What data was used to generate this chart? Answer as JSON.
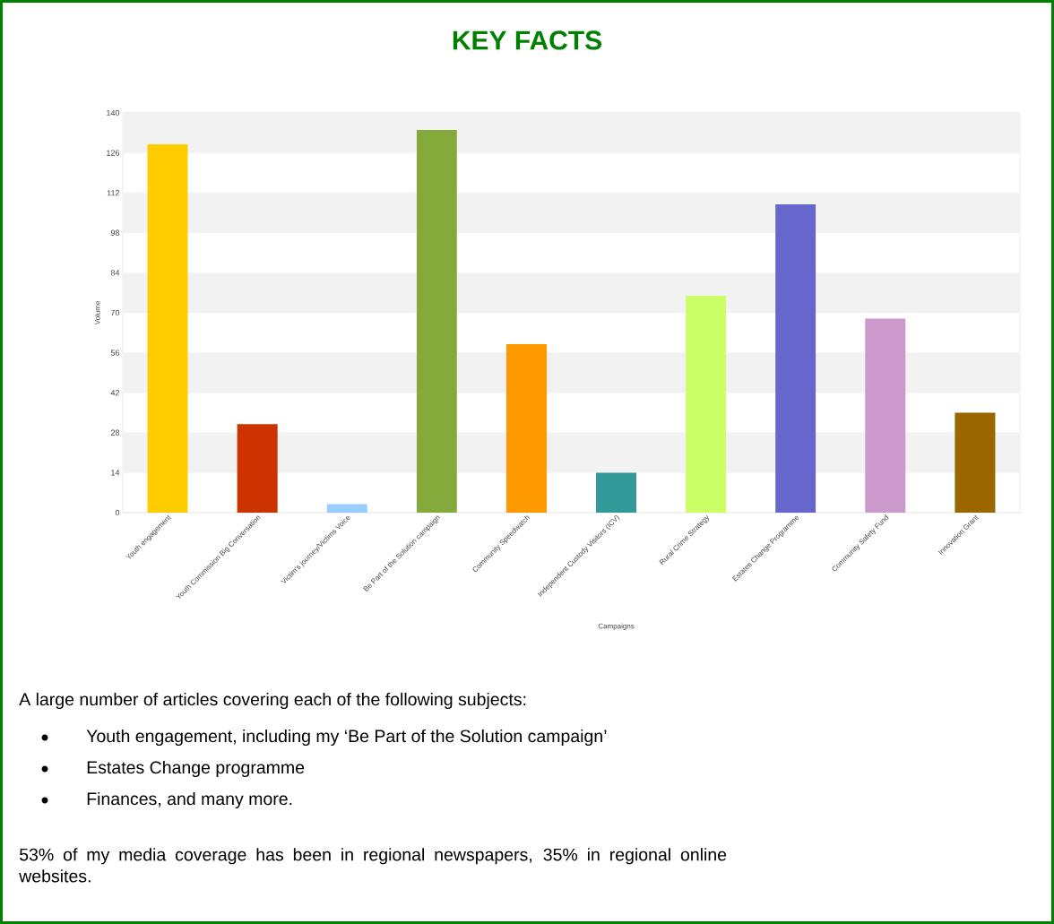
{
  "chart_data": {
    "type": "bar",
    "title": "KEY FACTS",
    "xlabel": "Campaigns",
    "ylabel": "Volume",
    "categories": [
      "Youth engagement",
      "Youth Commission Big Conversation",
      "Victim's journey/Victims Voice",
      "Be Part of the Solution campaign",
      "Community Speedwatch",
      "Independent Custody Visitors (ICV)",
      "Rural Crime Strategy",
      "Estates Change Programme",
      "Community Safety Fund",
      "Innovation Grant"
    ],
    "values": [
      129,
      31,
      3,
      134,
      59,
      14,
      76,
      108,
      68,
      35
    ],
    "colors": [
      "#ffcc00",
      "#cc3300",
      "#99ccff",
      "#84aa3c",
      "#ff9900",
      "#339999",
      "#ccff66",
      "#6666cc",
      "#cc99cc",
      "#996600"
    ],
    "ylim": [
      0,
      140
    ],
    "yticks": [
      0,
      14,
      28,
      42,
      56,
      70,
      84,
      98,
      112,
      126,
      140
    ],
    "grid": "y",
    "annotations": [
      "A large number of articles covering each of the following subjects:",
      "Youth engagement, including my ‘Be Part of the Solution campaign’",
      "Estates Change programme",
      "Finances, and many more.",
      "53% of my media coverage has been in regional newspapers, 35% in regional online websites."
    ]
  }
}
